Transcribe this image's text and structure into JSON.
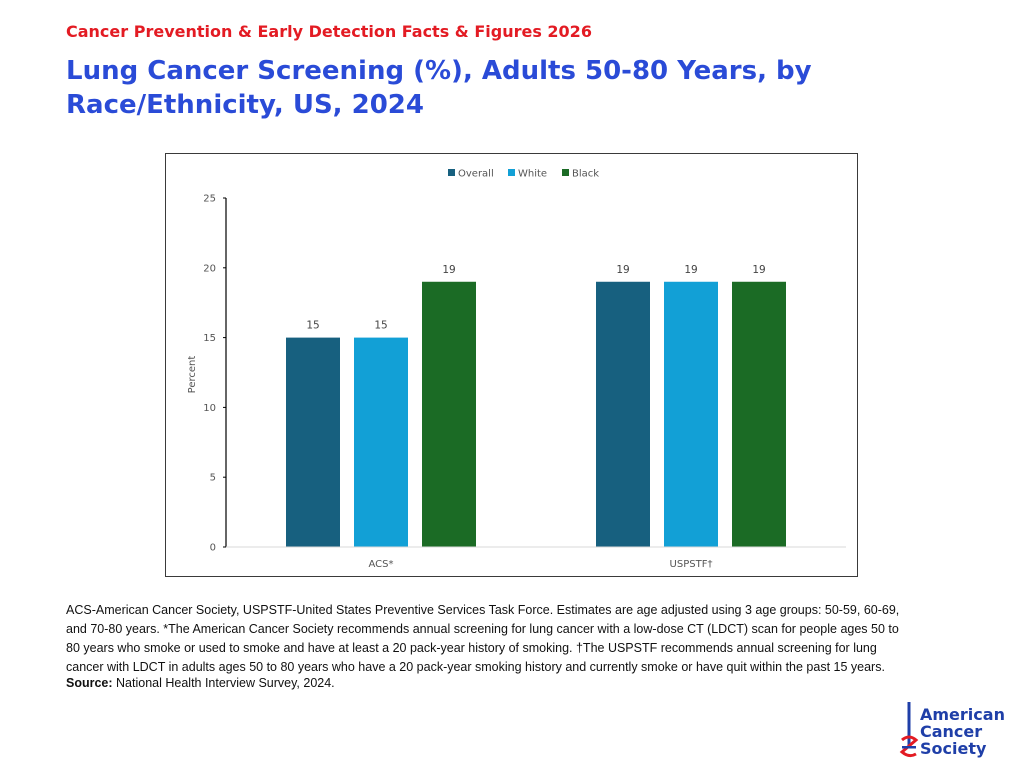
{
  "header": {
    "supertitle": "Cancer Prevention & Early Detection Facts & Figures 2026",
    "title": "Lung Cancer Screening (%), Adults 50-80 Years, by Race/Ethnicity, US, 2024"
  },
  "chart_data": {
    "type": "bar",
    "categories": [
      "ACS*",
      "USPSTF†"
    ],
    "series": [
      {
        "name": "Overall",
        "values": [
          15,
          19
        ],
        "color": "#17607f"
      },
      {
        "name": "White",
        "values": [
          15,
          19
        ],
        "color": "#12a0d6"
      },
      {
        "name": "Black",
        "values": [
          19,
          19
        ],
        "color": "#1b6b25"
      }
    ],
    "ylabel": "Percent",
    "xlabel": "",
    "ylim": [
      0,
      25
    ],
    "yticks": [
      0,
      5,
      10,
      15,
      20,
      25
    ],
    "legend_position": "top-center",
    "grid": false,
    "data_labels": true
  },
  "footnote": {
    "text": "ACS-American Cancer Society, USPSTF-United States Preventive Services Task Force. Estimates are age adjusted using 3 age groups: 50-59, 60-69, and 70-80 years. *The American Cancer Society recommends annual screening for lung cancer with a low-dose CT (LDCT) scan for people ages 50 to 80 years who smoke or used to smoke and have at least a 20 pack-year history of smoking. †The USPSTF recommends annual screening for lung cancer with LDCT in adults ages 50 to 80 years who have a 20 pack-year smoking history and currently smoke or have quit within the past 15 years.",
    "source_label": "Source:",
    "source_text": " National Health Interview Survey, 2024."
  },
  "logo": {
    "lines": [
      "American",
      "Cancer",
      "Society"
    ],
    "icon": "sword-icon",
    "color": "#1f3fa8",
    "accent": "#e31b23"
  }
}
